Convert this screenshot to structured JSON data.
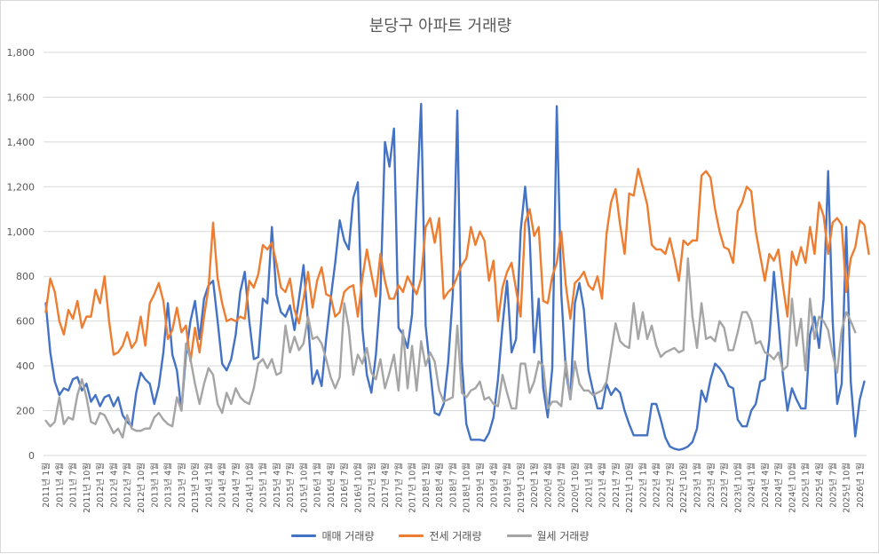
{
  "chart_data": {
    "type": "line",
    "title": "분당구 아파트 거래량",
    "xlabel": "",
    "ylabel": "",
    "ylim": [
      0,
      1800
    ],
    "yticks": [
      0,
      200,
      400,
      600,
      800,
      1000,
      1200,
      1400,
      1600,
      1800
    ],
    "ytick_labels": [
      "0",
      "200",
      "400",
      "600",
      "800",
      "1,000",
      "1,200",
      "1,400",
      "1,600",
      "1,800"
    ],
    "grid": true,
    "legend_position": "bottom",
    "x_start": "2011-01",
    "x_labels": [
      "2011년 1월",
      "2011년 4월",
      "2011년 7월",
      "2011년 10월",
      "2012년 1월",
      "2012년 4월",
      "2012년 7월",
      "2012년 10월",
      "2013년 1월",
      "2013년 4월",
      "2013년 7월",
      "2013년 10월",
      "2014년 1월",
      "2014년 4월",
      "2014년 7월",
      "2014년 10월",
      "2015년 1월",
      "2015년 4월",
      "2015년 7월",
      "2015년 10월",
      "2016년 1월",
      "2016년 4월",
      "2016년 7월",
      "2016년 10월",
      "2017년 1월",
      "2017년 4월",
      "2017년 7월",
      "2017년 10월",
      "2018년 1월",
      "2018년 4월",
      "2018년 7월",
      "2018년 10월",
      "2019년 1월",
      "2019년 4월",
      "2019년 7월",
      "2019년 10월",
      "2020년 1월",
      "2020년 4월",
      "2020년 7월",
      "2020년 10월",
      "2021년 1월",
      "2021년 4월",
      "2021년 7월",
      "2021년 10월",
      "2022년 1월",
      "2022년 4월",
      "2022년 7월",
      "2022년 10월",
      "2023년 1월",
      "2023년 4월",
      "2023년 7월",
      "2023년 10월",
      "2024년 1월",
      "2024년 4월",
      "2024년 7월",
      "2024년 10월",
      "2025년 1월",
      "2025년 4월",
      "2025년 7월",
      "2025년 10월",
      "2026년 1월"
    ],
    "series": [
      {
        "name": "매매 거래량",
        "color": "#4472c4",
        "values": [
          680,
          460,
          330,
          270,
          300,
          290,
          340,
          350,
          290,
          320,
          240,
          270,
          220,
          260,
          270,
          220,
          260,
          180,
          150,
          130,
          280,
          370,
          340,
          320,
          230,
          310,
          460,
          680,
          450,
          380,
          200,
          450,
          600,
          690,
          520,
          700,
          760,
          780,
          600,
          410,
          380,
          430,
          540,
          730,
          820,
          600,
          430,
          440,
          700,
          680,
          1020,
          720,
          640,
          620,
          670,
          560,
          700,
          850,
          590,
          320,
          380,
          310,
          520,
          700,
          860,
          1050,
          960,
          920,
          1150,
          1220,
          570,
          360,
          280,
          450,
          720,
          1400,
          1290,
          1460,
          570,
          540,
          480,
          630,
          1130,
          1570,
          580,
          380,
          190,
          180,
          230,
          420,
          720,
          1540,
          420,
          140,
          70,
          70,
          70,
          65,
          100,
          170,
          340,
          580,
          780,
          460,
          520,
          1000,
          1200,
          980,
          460,
          700,
          300,
          170,
          390,
          1560,
          720,
          380,
          250,
          680,
          770,
          650,
          380,
          290,
          210,
          210,
          320,
          270,
          300,
          280,
          200,
          140,
          90,
          90,
          90,
          90,
          230,
          230,
          160,
          80,
          40,
          30,
          25,
          30,
          40,
          60,
          120,
          290,
          240,
          340,
          410,
          390,
          360,
          310,
          300,
          160,
          130,
          130,
          200,
          230,
          330,
          340,
          520,
          820,
          600,
          360,
          200,
          300,
          250,
          210,
          210,
          540,
          620,
          480,
          700,
          1270,
          600,
          230,
          320,
          1020,
          330,
          85,
          250,
          330
        ]
      },
      {
        "name": "전세 거래량",
        "color": "#ed7d31",
        "values": [
          640,
          790,
          730,
          600,
          540,
          650,
          610,
          690,
          570,
          620,
          620,
          740,
          680,
          800,
          600,
          450,
          460,
          490,
          550,
          480,
          510,
          620,
          490,
          680,
          720,
          770,
          690,
          520,
          560,
          660,
          550,
          580,
          420,
          570,
          460,
          620,
          750,
          1040,
          790,
          680,
          600,
          610,
          600,
          620,
          610,
          780,
          750,
          810,
          940,
          920,
          950,
          860,
          750,
          730,
          790,
          650,
          590,
          700,
          820,
          660,
          780,
          840,
          720,
          710,
          620,
          640,
          730,
          750,
          760,
          620,
          790,
          920,
          810,
          710,
          900,
          780,
          700,
          700,
          760,
          730,
          800,
          760,
          720,
          790,
          1020,
          1060,
          950,
          1060,
          700,
          730,
          750,
          800,
          850,
          880,
          1020,
          940,
          1000,
          960,
          780,
          870,
          600,
          750,
          820,
          860,
          740,
          620,
          1040,
          1100,
          980,
          1020,
          690,
          680,
          800,
          860,
          1000,
          760,
          610,
          770,
          790,
          820,
          760,
          740,
          800,
          700,
          990,
          1130,
          1190,
          1030,
          900,
          1170,
          1160,
          1280,
          1200,
          1120,
          940,
          920,
          920,
          900,
          970,
          880,
          780,
          960,
          940,
          960,
          960,
          1250,
          1270,
          1240,
          1100,
          1000,
          930,
          920,
          860,
          1090,
          1130,
          1200,
          1180,
          1000,
          890,
          780,
          900,
          870,
          920,
          760,
          620,
          910,
          850,
          930,
          860,
          1020,
          900,
          1130,
          1070,
          900,
          1040,
          1060,
          1030,
          730,
          880,
          930,
          1050,
          1030,
          900
        ]
      },
      {
        "name": "월세 거래량",
        "color": "#a5a5a5",
        "values": [
          155,
          130,
          150,
          260,
          140,
          170,
          160,
          270,
          340,
          260,
          150,
          140,
          190,
          180,
          140,
          100,
          120,
          80,
          180,
          120,
          110,
          110,
          120,
          120,
          170,
          190,
          160,
          140,
          130,
          260,
          200,
          500,
          430,
          320,
          230,
          320,
          390,
          360,
          230,
          190,
          280,
          230,
          300,
          260,
          240,
          230,
          300,
          410,
          430,
          390,
          430,
          360,
          370,
          580,
          460,
          530,
          470,
          500,
          620,
          520,
          530,
          500,
          430,
          350,
          300,
          350,
          680,
          570,
          360,
          450,
          410,
          480,
          370,
          340,
          430,
          300,
          370,
          450,
          290,
          560,
          300,
          490,
          290,
          510,
          400,
          460,
          420,
          290,
          240,
          250,
          260,
          580,
          280,
          260,
          290,
          300,
          330,
          250,
          260,
          230,
          220,
          360,
          280,
          210,
          210,
          410,
          410,
          280,
          330,
          420,
          400,
          210,
          240,
          240,
          220,
          420,
          250,
          420,
          320,
          290,
          290,
          270,
          280,
          290,
          330,
          460,
          590,
          510,
          490,
          480,
          680,
          520,
          640,
          520,
          580,
          490,
          440,
          460,
          470,
          480,
          460,
          470,
          880,
          620,
          480,
          680,
          520,
          530,
          510,
          600,
          570,
          470,
          470,
          550,
          640,
          640,
          600,
          500,
          510,
          460,
          450,
          430,
          460,
          380,
          400,
          700,
          490,
          610,
          380,
          700,
          520,
          620,
          600,
          560,
          450,
          370,
          560,
          640,
          600,
          550
        ]
      }
    ]
  }
}
